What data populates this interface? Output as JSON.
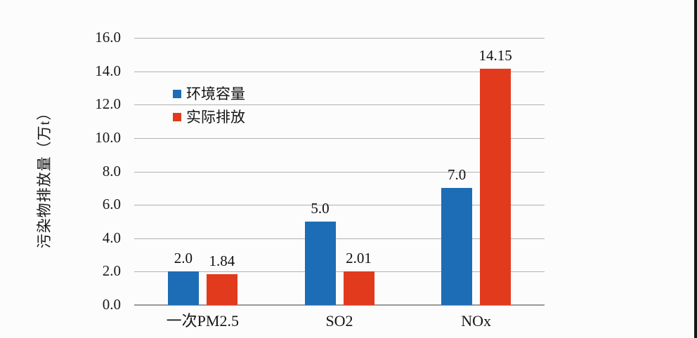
{
  "page": {
    "background_color": "#fcfcfc",
    "right_border_color": "#161616"
  },
  "chart_data": {
    "type": "bar",
    "categories": [
      "一次PM2.5",
      "SO2",
      "NOx"
    ],
    "series": [
      {
        "name": "环境容量",
        "color": "#1c6db6",
        "values": [
          2.0,
          5.0,
          7.0
        ],
        "value_labels": [
          "2.0",
          "5.0",
          "7.0"
        ]
      },
      {
        "name": "实际排放",
        "color": "#e23a1d",
        "values": [
          1.84,
          2.01,
          14.15
        ],
        "value_labels": [
          "1.84",
          "2.01",
          "14.15"
        ]
      }
    ],
    "title": "",
    "xlabel": "",
    "ylabel": "污染物排放量（万t）",
    "ylim": [
      0,
      16
    ],
    "yticks": [
      0,
      2,
      4,
      6,
      8,
      10,
      12,
      14,
      16
    ],
    "ytick_labels": [
      "0.0",
      "2.0",
      "4.0",
      "6.0",
      "8.0",
      "10.0",
      "12.0",
      "14.0",
      "16.0"
    ],
    "grid": true,
    "legend_position": "inside-upper-left"
  }
}
